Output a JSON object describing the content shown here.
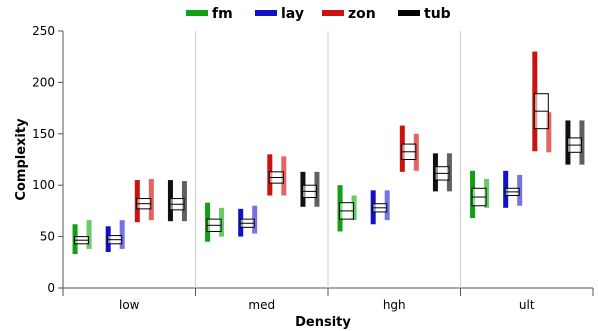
{
  "chart_data": {
    "type": "box",
    "xlabel": "Density",
    "ylabel": "Complexity",
    "ylim": [
      0,
      250
    ],
    "yticks": [
      0,
      50,
      100,
      150,
      200,
      250
    ],
    "categories": [
      "low",
      "med",
      "hgh",
      "ult"
    ],
    "legend_position": "top",
    "grid": false,
    "series": [
      {
        "name": "fm",
        "color": "#11a011",
        "sub_colors": [
          "#11a011",
          "#4cc24c"
        ],
        "groups": [
          {
            "main": {
              "min": 33,
              "max": 62
            },
            "light": {
              "min": 38,
              "max": 66
            },
            "box": {
              "low": 43,
              "high": 50
            }
          },
          {
            "main": {
              "min": 45,
              "max": 83
            },
            "light": {
              "min": 50,
              "max": 78
            },
            "box": {
              "low": 55,
              "high": 67
            }
          },
          {
            "main": {
              "min": 55,
              "max": 100
            },
            "light": {
              "min": 66,
              "max": 90
            },
            "box": {
              "low": 67,
              "high": 83
            }
          },
          {
            "main": {
              "min": 68,
              "max": 114
            },
            "light": {
              "min": 78,
              "max": 106
            },
            "box": {
              "low": 80,
              "high": 97
            }
          }
        ]
      },
      {
        "name": "lay",
        "color": "#1111cc",
        "sub_colors": [
          "#1111cc",
          "#5c5cdf"
        ],
        "groups": [
          {
            "main": {
              "min": 35,
              "max": 60
            },
            "light": {
              "min": 38,
              "max": 66
            },
            "box": {
              "low": 43,
              "high": 51
            }
          },
          {
            "main": {
              "min": 50,
              "max": 77
            },
            "light": {
              "min": 53,
              "max": 80
            },
            "box": {
              "low": 59,
              "high": 67
            }
          },
          {
            "main": {
              "min": 62,
              "max": 95
            },
            "light": {
              "min": 66,
              "max": 95
            },
            "box": {
              "low": 74,
              "high": 82
            }
          },
          {
            "main": {
              "min": 78,
              "max": 114
            },
            "light": {
              "min": 80,
              "max": 110
            },
            "box": {
              "low": 90,
              "high": 97
            }
          }
        ]
      },
      {
        "name": "zon",
        "color": "#cc1111",
        "sub_colors": [
          "#cc1111",
          "#e04848"
        ],
        "groups": [
          {
            "main": {
              "min": 64,
              "max": 105
            },
            "light": {
              "min": 66,
              "max": 106
            },
            "box": {
              "low": 77,
              "high": 87
            }
          },
          {
            "main": {
              "min": 90,
              "max": 130
            },
            "light": {
              "min": 90,
              "max": 128
            },
            "box": {
              "low": 102,
              "high": 113
            }
          },
          {
            "main": {
              "min": 113,
              "max": 158
            },
            "light": {
              "min": 114,
              "max": 150
            },
            "box": {
              "low": 125,
              "high": 140
            }
          },
          {
            "main": {
              "min": 133,
              "max": 230
            },
            "light": {
              "min": 132,
              "max": 171
            },
            "box": {
              "low": 155,
              "high": 189
            }
          }
        ]
      },
      {
        "name": "tub",
        "color": "#000000",
        "sub_colors": [
          "#111111",
          "#444444"
        ],
        "groups": [
          {
            "main": {
              "min": 65,
              "max": 105
            },
            "light": {
              "min": 65,
              "max": 104
            },
            "box": {
              "low": 76,
              "high": 87
            }
          },
          {
            "main": {
              "min": 79,
              "max": 113
            },
            "light": {
              "min": 79,
              "max": 113
            },
            "box": {
              "low": 88,
              "high": 100
            }
          },
          {
            "main": {
              "min": 94,
              "max": 131
            },
            "light": {
              "min": 94,
              "max": 131
            },
            "box": {
              "low": 105,
              "high": 118
            }
          },
          {
            "main": {
              "min": 120,
              "max": 163
            },
            "light": {
              "min": 120,
              "max": 163
            },
            "box": {
              "low": 132,
              "high": 146
            }
          }
        ]
      }
    ]
  }
}
